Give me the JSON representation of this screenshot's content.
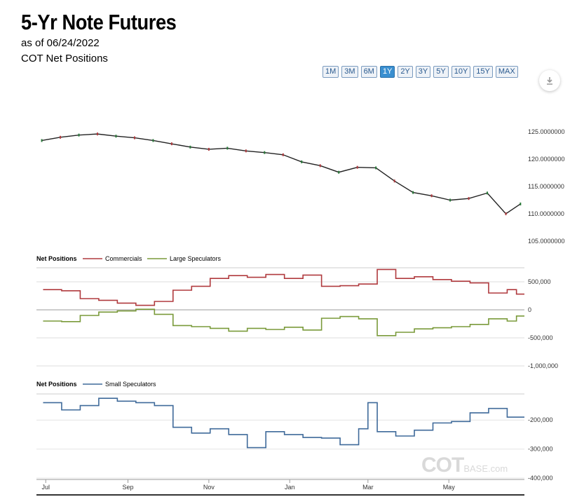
{
  "header": {
    "title": "5-Yr Note Futures",
    "as_of": "as of 06/24/2022",
    "subtitle": "COT Net Positions"
  },
  "ranges": [
    "1M",
    "3M",
    "6M",
    "1Y",
    "2Y",
    "3Y",
    "5Y",
    "10Y",
    "15Y",
    "MAX"
  ],
  "active_range": "1Y",
  "download_icon": "download-icon",
  "watermark": {
    "main": "COT",
    "sub": "BASE.com"
  },
  "colors": {
    "commercials": "#b03a3e",
    "large_specs": "#7a9a3a",
    "small_specs": "#3f6a9a",
    "price": "#222222",
    "active": "#3a8fd0"
  },
  "chart_data": [
    {
      "type": "line",
      "title": "5-Yr Note Futures",
      "x": [
        "2021-06-28",
        "2021-07-12",
        "2021-07-26",
        "2021-08-09",
        "2021-08-23",
        "2021-09-06",
        "2021-09-20",
        "2021-10-04",
        "2021-10-18",
        "2021-11-01",
        "2021-11-15",
        "2021-11-29",
        "2021-12-13",
        "2021-12-27",
        "2022-01-10",
        "2022-01-24",
        "2022-02-07",
        "2022-02-21",
        "2022-03-07",
        "2022-03-21",
        "2022-04-04",
        "2022-04-18",
        "2022-05-02",
        "2022-05-16",
        "2022-05-30",
        "2022-06-13",
        "2022-06-24"
      ],
      "series": [
        {
          "values": [
            123.4,
            124.0,
            124.4,
            124.6,
            124.2,
            123.9,
            123.4,
            122.8,
            122.2,
            121.8,
            122.0,
            121.5,
            121.2,
            120.8,
            119.5,
            118.8,
            117.6,
            118.5,
            118.4,
            116.0,
            113.9,
            113.3,
            112.5,
            112.8,
            113.8,
            110.0,
            111.8
          ]
        }
      ],
      "ylim": [
        105,
        125
      ],
      "yticks": [
        "125.0000000",
        "120.0000000",
        "115.0000000",
        "110.0000000",
        "105.0000000"
      ]
    },
    {
      "type": "line",
      "title": "Net Positions",
      "x": [
        "2021-06-29",
        "2021-07-13",
        "2021-07-27",
        "2021-08-10",
        "2021-08-24",
        "2021-09-07",
        "2021-09-21",
        "2021-10-05",
        "2021-10-19",
        "2021-11-02",
        "2021-11-16",
        "2021-11-30",
        "2021-12-14",
        "2021-12-28",
        "2022-01-11",
        "2022-01-25",
        "2022-02-08",
        "2022-02-22",
        "2022-03-08",
        "2022-03-22",
        "2022-04-05",
        "2022-04-19",
        "2022-05-03",
        "2022-05-17",
        "2022-05-31",
        "2022-06-14",
        "2022-06-21"
      ],
      "series": [
        {
          "name": "Commercials",
          "values": [
            360000,
            340000,
            200000,
            170000,
            120000,
            80000,
            150000,
            350000,
            420000,
            560000,
            610000,
            580000,
            630000,
            560000,
            620000,
            420000,
            430000,
            460000,
            720000,
            560000,
            590000,
            540000,
            510000,
            480000,
            300000,
            360000,
            280000
          ]
        },
        {
          "name": "Large Speculators",
          "values": [
            -200000,
            -210000,
            -100000,
            -40000,
            -20000,
            10000,
            -80000,
            -280000,
            -300000,
            -330000,
            -380000,
            -330000,
            -350000,
            -310000,
            -360000,
            -150000,
            -120000,
            -160000,
            -460000,
            -400000,
            -340000,
            -320000,
            -300000,
            -260000,
            -160000,
            -200000,
            -110000
          ]
        }
      ],
      "ylim": [
        -1000000,
        750000
      ],
      "yticks": [
        "500,000",
        "0",
        "-500,000",
        "-1,000,000"
      ]
    },
    {
      "type": "line",
      "title": "Net Positions",
      "x": [
        "2021-06-29",
        "2021-07-13",
        "2021-07-27",
        "2021-08-10",
        "2021-08-24",
        "2021-09-07",
        "2021-09-21",
        "2021-10-05",
        "2021-10-19",
        "2021-11-02",
        "2021-11-16",
        "2021-11-30",
        "2021-12-14",
        "2021-12-28",
        "2022-01-11",
        "2022-01-25",
        "2022-02-08",
        "2022-02-22",
        "2022-03-01",
        "2022-03-08",
        "2022-03-22",
        "2022-04-05",
        "2022-04-19",
        "2022-05-03",
        "2022-05-17",
        "2022-05-31",
        "2022-06-14",
        "2022-06-21"
      ],
      "series": [
        {
          "name": "Small Speculators",
          "values": [
            -140000,
            -165000,
            -150000,
            -125000,
            -135000,
            -140000,
            -150000,
            -225000,
            -245000,
            -230000,
            -250000,
            -295000,
            -240000,
            -250000,
            -260000,
            -262000,
            -285000,
            -230000,
            -140000,
            -240000,
            -255000,
            -235000,
            -210000,
            -205000,
            -175000,
            -160000,
            -190000,
            -190000
          ]
        }
      ],
      "ylim": [
        -400000,
        -110000
      ],
      "yticks": [
        "-200,000",
        "-300,000",
        "-400,000"
      ]
    }
  ],
  "x_axis_labels": [
    "Jul",
    "Sep",
    "Nov",
    "Jan",
    "Mar",
    "May"
  ]
}
